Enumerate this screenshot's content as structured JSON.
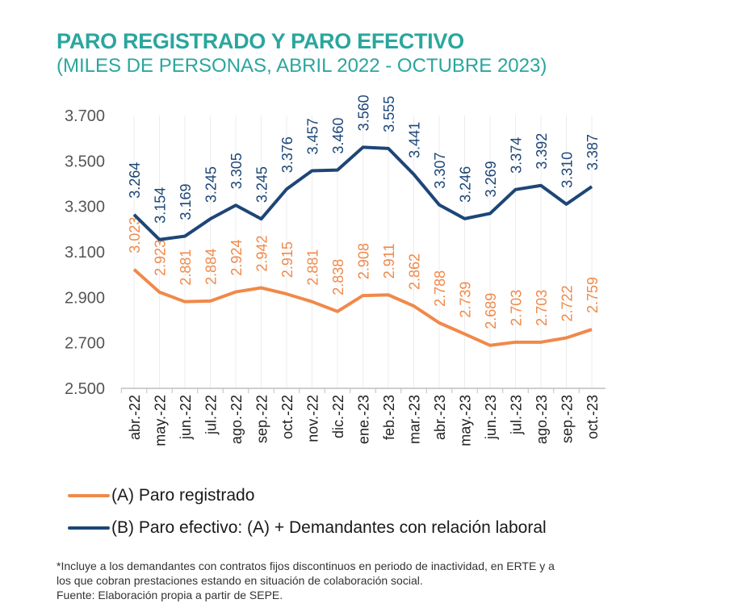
{
  "chart_data": {
    "type": "line",
    "title": "PARO REGISTRADO Y PARO EFECTIVO",
    "subtitle": "(MILES DE PERSONAS, ABRIL 2022 - OCTUBRE  2023)",
    "categories": [
      "abr.-22",
      "may.-22",
      "jun.-22",
      "jul.-22",
      "ago.-22",
      "sep.-22",
      "oct.-22",
      "nov.-22",
      "dic.-22",
      "ene.-23",
      "feb.-23",
      "mar.-23",
      "abr.-23",
      "may.-23",
      "jun.-23",
      "jul.-23",
      "ago.-23",
      "sep.-23",
      "oct.-23"
    ],
    "yticks": [
      "2.500",
      "2.700",
      "2.900",
      "3.100",
      "3.300",
      "3.500",
      "3.700"
    ],
    "ylim": [
      2500,
      3700
    ],
    "grid": "vertical-light",
    "legend_position": "bottom",
    "series": [
      {
        "name": "(A) Paro registrado",
        "color": "#f0894a",
        "values": [
          3023,
          2923,
          2881,
          2884,
          2924,
          2942,
          2915,
          2881,
          2838,
          2908,
          2911,
          2862,
          2788,
          2739,
          2689,
          2703,
          2703,
          2722,
          2759
        ],
        "labels": [
          "3.023",
          "2.923",
          "2.881",
          "2.884",
          "2.924",
          "2.942",
          "2.915",
          "2.881",
          "2.838",
          "2.908",
          "2.911",
          "2.862",
          "2.788",
          "2.739",
          "2.689",
          "2.703",
          "2.703",
          "2.722",
          "2.759"
        ]
      },
      {
        "name": "(B) Paro efectivo: (A) + Demandantes con relación laboral",
        "color": "#1d4677",
        "values": [
          3264,
          3154,
          3169,
          3245,
          3305,
          3245,
          3376,
          3457,
          3460,
          3560,
          3555,
          3441,
          3307,
          3246,
          3269,
          3374,
          3392,
          3310,
          3387
        ],
        "labels": [
          "3.264",
          "3.154",
          "3.169",
          "3.245",
          "3.305",
          "3.245",
          "3.376",
          "3.457",
          "3.460",
          "3.560",
          "3.555",
          "3.441",
          "3.307",
          "3.246",
          "3.269",
          "3.374",
          "3.392",
          "3.310",
          "3.387"
        ]
      }
    ]
  },
  "notes": [
    "*Incluye a los demandantes con contratos fijos discontinuos en periodo de inactividad, en ERTE y a",
    "los que cobran prestaciones estando en situación de colaboración social.",
    "Fuente: Elaboración propia a partir de SEPE."
  ]
}
